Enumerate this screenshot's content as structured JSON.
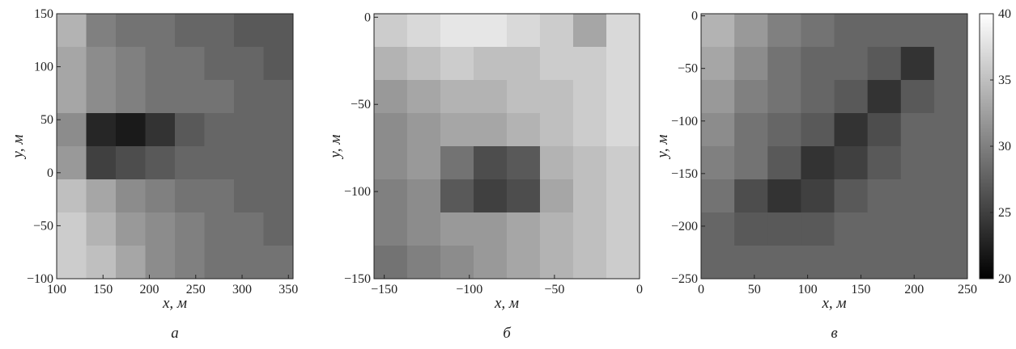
{
  "chart_data": [
    {
      "type": "heatmap",
      "label": "а",
      "xlabel": "x, м",
      "ylabel": "y, м",
      "colormap": "gray",
      "xlim": [
        100,
        355
      ],
      "ylim": [
        -100,
        150
      ],
      "zlim": [
        20,
        40
      ],
      "xticks": [
        100,
        150,
        200,
        250,
        300,
        350
      ],
      "yticks": [
        {
          "value": -100,
          "label": "−100"
        },
        {
          "value": -50,
          "label": "−50"
        },
        0,
        50,
        100,
        150
      ],
      "z": [
        [
          34,
          30,
          29,
          29,
          28,
          28,
          27,
          27
        ],
        [
          33,
          31,
          30,
          29,
          29,
          28,
          28,
          27
        ],
        [
          33,
          31,
          30,
          29,
          29,
          29,
          28,
          28
        ],
        [
          31,
          23,
          22,
          24,
          27,
          28,
          28,
          28
        ],
        [
          32,
          25,
          26,
          27,
          28,
          28,
          28,
          28
        ],
        [
          35,
          33,
          31,
          30,
          29,
          29,
          28,
          28
        ],
        [
          36,
          34,
          32,
          31,
          30,
          29,
          29,
          28
        ],
        [
          36,
          35,
          33,
          31,
          30,
          29,
          29,
          29
        ]
      ]
    },
    {
      "type": "heatmap",
      "label": "б",
      "xlabel": "x, м",
      "ylabel": "y, м",
      "colormap": "gray",
      "xlim": [
        -156,
        0
      ],
      "ylim": [
        -150,
        2
      ],
      "zlim": [
        20,
        40
      ],
      "xticks": [
        {
          "value": -150,
          "label": "−150"
        },
        {
          "value": -100,
          "label": "−100"
        },
        {
          "value": -50,
          "label": "−50"
        },
        0
      ],
      "yticks": [
        {
          "value": -150,
          "label": "−150"
        },
        {
          "value": -100,
          "label": "−100"
        },
        {
          "value": -50,
          "label": "−50"
        },
        0
      ],
      "z": [
        [
          36,
          37,
          38,
          38,
          37,
          36,
          33,
          37
        ],
        [
          34,
          35,
          36,
          35,
          35,
          36,
          36,
          37
        ],
        [
          32,
          33,
          34,
          34,
          35,
          35,
          36,
          37
        ],
        [
          31,
          32,
          33,
          33,
          34,
          35,
          36,
          37
        ],
        [
          31,
          32,
          29,
          26,
          27,
          34,
          35,
          36
        ],
        [
          30,
          31,
          27,
          25,
          26,
          33,
          35,
          36
        ],
        [
          30,
          31,
          32,
          32,
          33,
          34,
          35,
          36
        ],
        [
          29,
          30,
          31,
          32,
          33,
          34,
          35,
          36
        ]
      ]
    },
    {
      "type": "heatmap",
      "label": "в",
      "xlabel": "x, м",
      "ylabel": "y, м",
      "colormap": "gray",
      "xlim": [
        0,
        250
      ],
      "ylim": [
        -250,
        2
      ],
      "zlim": [
        20,
        40
      ],
      "xticks": [
        0,
        50,
        100,
        150,
        200,
        250
      ],
      "yticks": [
        {
          "value": -250,
          "label": "−250"
        },
        {
          "value": -200,
          "label": "−200"
        },
        {
          "value": -150,
          "label": "−150"
        },
        {
          "value": -100,
          "label": "−100"
        },
        {
          "value": -50,
          "label": "−50"
        },
        0
      ],
      "zticks": [
        20,
        25,
        30,
        35,
        40
      ],
      "z": [
        [
          34,
          32,
          30,
          29,
          28,
          28,
          28,
          28
        ],
        [
          33,
          31,
          29,
          28,
          28,
          27,
          24,
          28
        ],
        [
          32,
          30,
          29,
          28,
          27,
          24,
          27,
          28
        ],
        [
          31,
          29,
          28,
          27,
          24,
          26,
          28,
          28
        ],
        [
          30,
          29,
          27,
          24,
          25,
          27,
          28,
          28
        ],
        [
          29,
          26,
          24,
          25,
          27,
          28,
          28,
          28
        ],
        [
          28,
          27,
          27,
          27,
          28,
          28,
          28,
          28
        ],
        [
          28,
          28,
          28,
          28,
          28,
          28,
          28,
          28
        ]
      ]
    }
  ]
}
